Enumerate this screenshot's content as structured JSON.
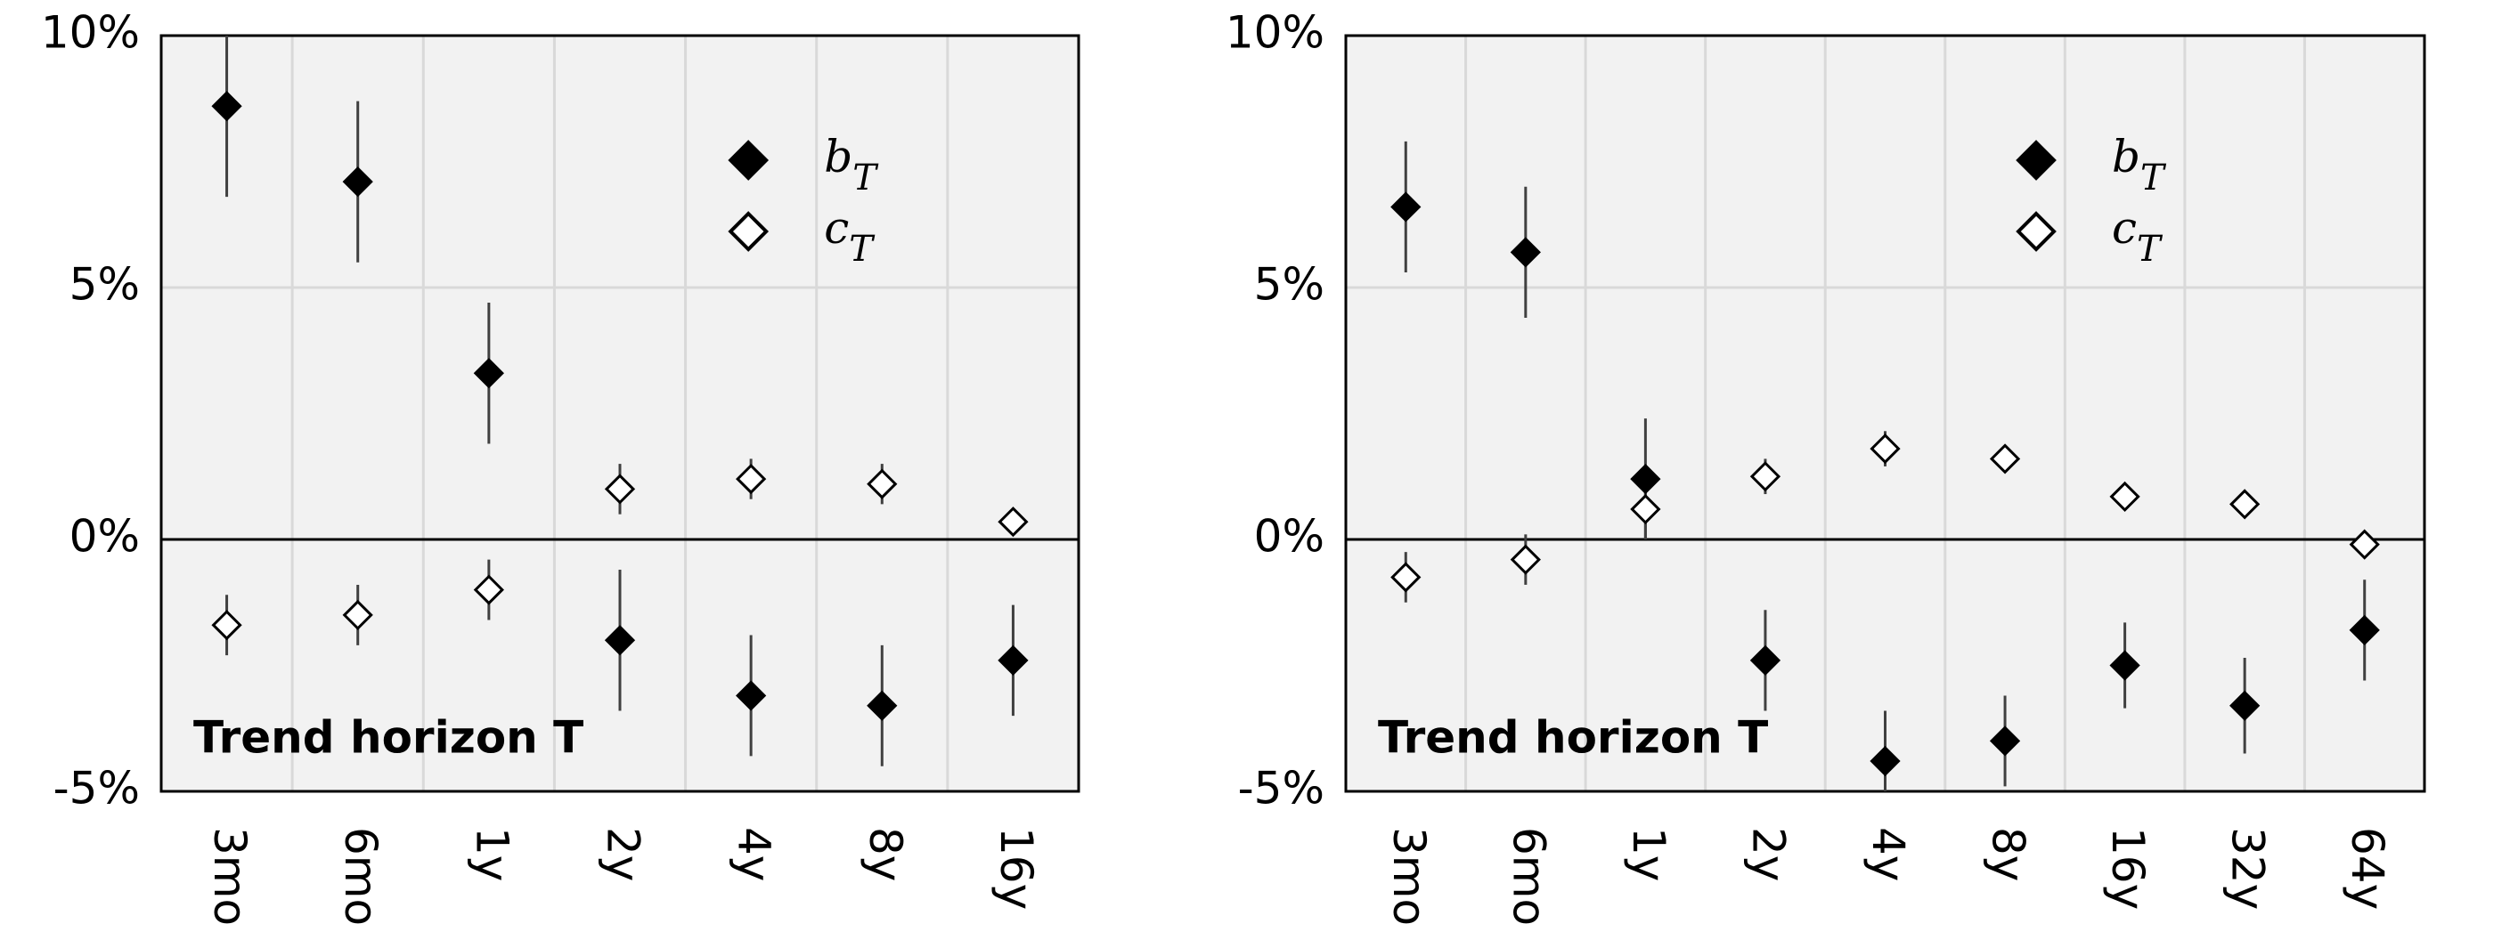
{
  "chart_data": [
    {
      "type": "scatter",
      "annotation": "Trend horizon T",
      "categories": [
        "3mo",
        "6mo",
        "1y",
        "2y",
        "4y",
        "8y",
        "16y"
      ],
      "series": [
        {
          "name": "bT",
          "color": "#000000",
          "filled": true,
          "values": [
            8.6,
            7.1,
            3.3,
            -2.0,
            -3.1,
            -3.3,
            -2.4
          ],
          "errors": [
            1.8,
            1.6,
            1.4,
            1.4,
            1.2,
            1.2,
            1.1
          ]
        },
        {
          "name": "cT",
          "color": "#000000",
          "filled": false,
          "values": [
            -1.7,
            -1.5,
            -1.0,
            1.0,
            1.2,
            1.1,
            0.35
          ],
          "errors": [
            0.6,
            0.6,
            0.6,
            0.5,
            0.4,
            0.4,
            0.2
          ]
        }
      ],
      "ylim": [
        -5,
        10
      ],
      "yticks": [
        {
          "value": -5,
          "label": "-5%"
        },
        {
          "value": 0,
          "label": "0%"
        },
        {
          "value": 5,
          "label": "5%"
        },
        {
          "value": 10,
          "label": "10%"
        }
      ],
      "grid": true,
      "legend": "upper right"
    },
    {
      "type": "scatter",
      "annotation": "Trend horizon T",
      "categories": [
        "3mo",
        "6mo",
        "1y",
        "2y",
        "4y",
        "8y",
        "16y",
        "32y",
        "64y"
      ],
      "series": [
        {
          "name": "bT",
          "color": "#000000",
          "filled": true,
          "values": [
            6.6,
            5.7,
            1.2,
            -2.4,
            -4.4,
            -4.0,
            -2.5,
            -3.3,
            -1.8
          ],
          "errors": [
            1.3,
            1.3,
            1.2,
            1.0,
            1.0,
            0.9,
            0.85,
            0.95,
            1.0
          ]
        },
        {
          "name": "cT",
          "color": "#000000",
          "filled": false,
          "values": [
            -0.75,
            -0.4,
            0.6,
            1.25,
            1.8,
            1.6,
            0.85,
            0.7,
            -0.1
          ],
          "errors": [
            0.5,
            0.5,
            0.6,
            0.35,
            0.35,
            0.2,
            0.15,
            0.15,
            0.15
          ]
        }
      ],
      "ylim": [
        -5,
        10
      ],
      "yticks": [
        {
          "value": -5,
          "label": "-5%"
        },
        {
          "value": 0,
          "label": "0%"
        },
        {
          "value": 5,
          "label": "5%"
        },
        {
          "value": 10,
          "label": "10%"
        }
      ],
      "grid": true,
      "legend": "upper right"
    }
  ]
}
